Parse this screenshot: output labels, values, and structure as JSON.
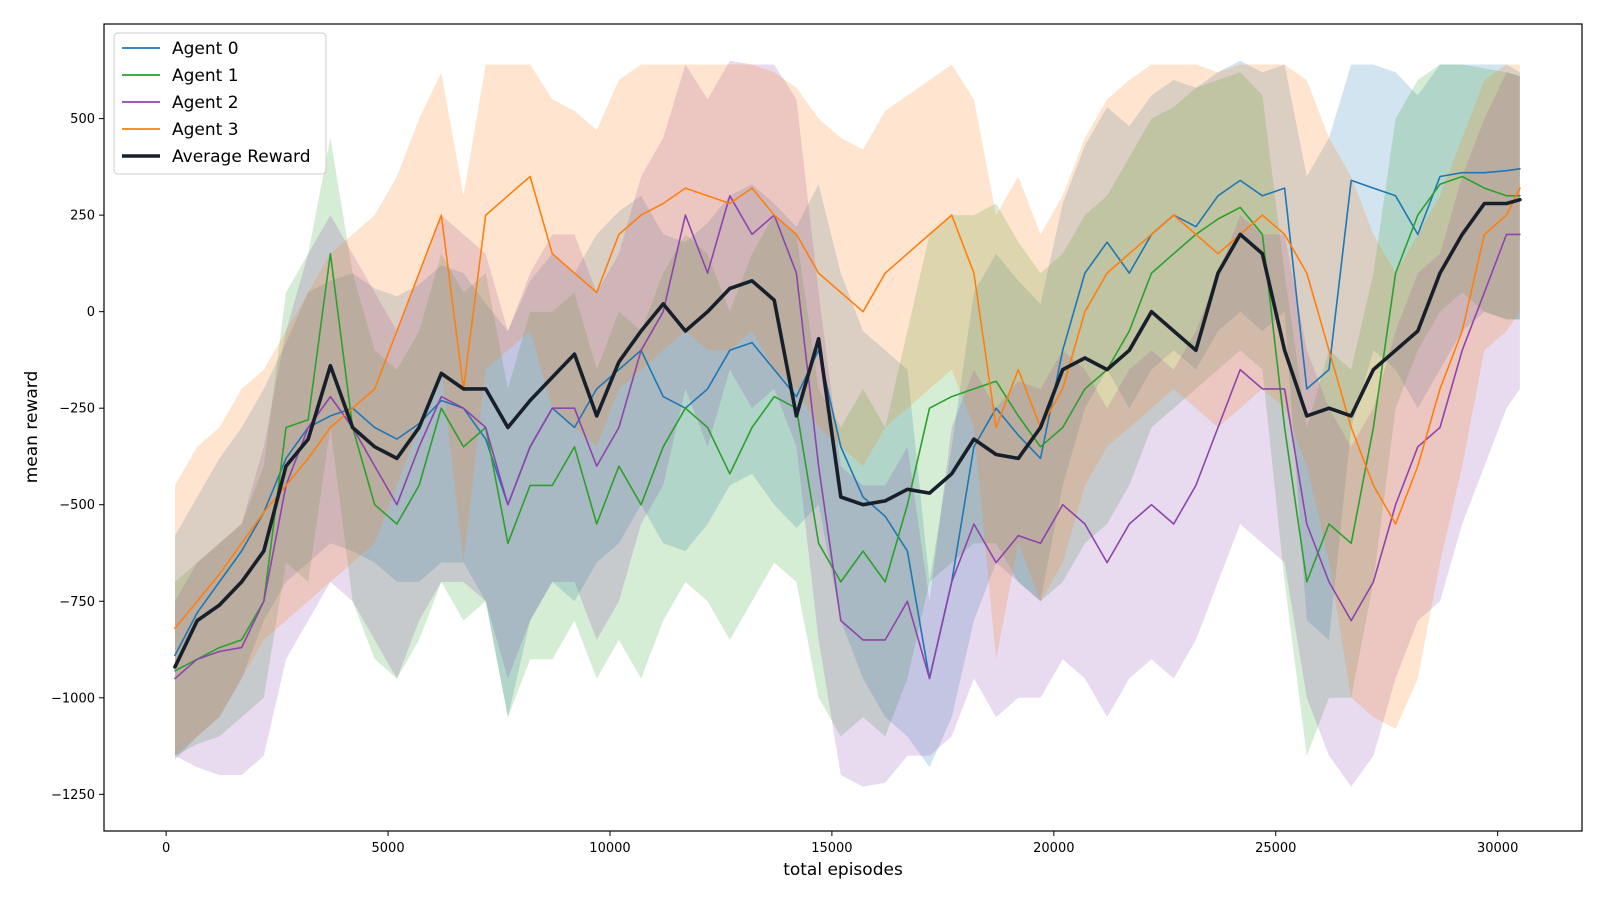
{
  "chart_data": {
    "type": "line",
    "xlabel": "total episodes",
    "ylabel": "mean reward",
    "xlim": [
      -1400,
      31900
    ],
    "ylim": [
      -1345,
      745
    ],
    "xticks": [
      0,
      5000,
      10000,
      15000,
      20000,
      25000,
      30000
    ],
    "yticks": [
      500,
      250,
      0,
      -250,
      -500,
      -750,
      -1000,
      -1250
    ],
    "legend_position": "top-left",
    "grid": false,
    "series": [
      {
        "name": "Agent 0",
        "color": "#1f77b4",
        "band_opacity": 0.2,
        "x": [
          200,
          700,
          1200,
          1700,
          2200,
          2700,
          3200,
          3700,
          4200,
          4700,
          5200,
          5700,
          6200,
          6700,
          7200,
          7700,
          8200,
          8700,
          9200,
          9700,
          10200,
          10700,
          11200,
          11700,
          12200,
          12700,
          13200,
          13700,
          14200,
          14700,
          15200,
          15700,
          16200,
          16700,
          17200,
          17700,
          18200,
          18700,
          19200,
          19700,
          20200,
          20700,
          21200,
          21700,
          22200,
          22700,
          23200,
          23700,
          24200,
          24700,
          25200,
          25700,
          26200,
          26700,
          27200,
          27700,
          28200,
          28700,
          29200,
          29700,
          30200,
          30500
        ],
        "y": [
          -890,
          -780,
          -700,
          -620,
          -520,
          -380,
          -300,
          -270,
          -250,
          -300,
          -330,
          -290,
          -230,
          -250,
          -330,
          -500,
          -350,
          -250,
          -300,
          -200,
          -150,
          -100,
          -220,
          -250,
          -200,
          -100,
          -80,
          -150,
          -220,
          -100,
          -350,
          -480,
          -530,
          -620,
          -950,
          -700,
          -350,
          -250,
          -320,
          -380,
          -100,
          100,
          180,
          100,
          200,
          250,
          220,
          300,
          340,
          300,
          320,
          -200,
          -150,
          340,
          320,
          300,
          200,
          350,
          360,
          360,
          365,
          370
        ],
        "lower": [
          -1160,
          -1100,
          -1050,
          -950,
          -800,
          -700,
          -650,
          -600,
          -620,
          -650,
          -700,
          -700,
          -650,
          -650,
          -750,
          -1050,
          -800,
          -700,
          -750,
          -650,
          -600,
          -500,
          -600,
          -620,
          -550,
          -450,
          -420,
          -500,
          -560,
          -500,
          -800,
          -950,
          -1050,
          -1100,
          -1180,
          -1050,
          -800,
          -650,
          -700,
          -750,
          -450,
          -250,
          -150,
          -250,
          -150,
          -100,
          -150,
          -50,
          0,
          -50,
          0,
          -800,
          -850,
          -300,
          -100,
          -150,
          -250,
          -150,
          -50,
          0,
          -20,
          -20
        ],
        "upper": [
          -580,
          -480,
          -380,
          -300,
          -200,
          -80,
          50,
          80,
          100,
          60,
          40,
          70,
          120,
          100,
          20,
          -50,
          80,
          150,
          100,
          200,
          260,
          300,
          200,
          180,
          230,
          300,
          330,
          280,
          220,
          330,
          100,
          -50,
          -100,
          -150,
          -700,
          -350,
          50,
          150,
          80,
          20,
          280,
          430,
          530,
          480,
          560,
          600,
          580,
          620,
          650,
          620,
          640,
          350,
          450,
          640,
          640,
          620,
          560,
          640,
          640,
          640,
          640,
          620
        ]
      },
      {
        "name": "Agent 1",
        "color": "#2ca02c",
        "band_opacity": 0.2,
        "x": [
          200,
          700,
          1200,
          1700,
          2200,
          2700,
          3200,
          3700,
          4200,
          4700,
          5200,
          5700,
          6200,
          6700,
          7200,
          7700,
          8200,
          8700,
          9200,
          9700,
          10200,
          10700,
          11200,
          11700,
          12200,
          12700,
          13200,
          13700,
          14200,
          14700,
          15200,
          15700,
          16200,
          16700,
          17200,
          17700,
          18200,
          18700,
          19200,
          19700,
          20200,
          20700,
          21200,
          21700,
          22200,
          22700,
          23200,
          23700,
          24200,
          24700,
          25200,
          25700,
          26200,
          26700,
          27200,
          27700,
          28200,
          28700,
          29200,
          29700,
          30200,
          30500
        ],
        "y": [
          -930,
          -900,
          -870,
          -850,
          -750,
          -300,
          -280,
          150,
          -300,
          -500,
          -550,
          -450,
          -250,
          -350,
          -300,
          -600,
          -450,
          -450,
          -350,
          -550,
          -400,
          -500,
          -350,
          -250,
          -300,
          -420,
          -300,
          -220,
          -250,
          -600,
          -700,
          -620,
          -700,
          -500,
          -250,
          -220,
          -200,
          -180,
          -270,
          -350,
          -300,
          -200,
          -150,
          -50,
          100,
          150,
          200,
          240,
          270,
          200,
          -300,
          -700,
          -550,
          -600,
          -300,
          100,
          250,
          330,
          350,
          320,
          300,
          300
        ],
        "lower": [
          -1150,
          -1120,
          -1100,
          -1050,
          -1000,
          -650,
          -700,
          -300,
          -750,
          -900,
          -950,
          -850,
          -700,
          -800,
          -750,
          -1050,
          -900,
          -900,
          -800,
          -950,
          -850,
          -950,
          -800,
          -700,
          -750,
          -850,
          -750,
          -650,
          -700,
          -1000,
          -1100,
          -1050,
          -1100,
          -950,
          -700,
          -650,
          -600,
          -600,
          -700,
          -750,
          -700,
          -600,
          -550,
          -450,
          -300,
          -250,
          -200,
          -150,
          -100,
          -150,
          -700,
          -1150,
          -1000,
          -1000,
          -700,
          -250,
          -100,
          0,
          50,
          0,
          -20,
          -20
        ],
        "upper": [
          -700,
          -650,
          -600,
          -550,
          -400,
          50,
          150,
          450,
          100,
          -100,
          -150,
          -50,
          150,
          50,
          100,
          -200,
          0,
          0,
          50,
          -150,
          0,
          -50,
          100,
          200,
          150,
          0,
          150,
          250,
          200,
          -200,
          -300,
          -200,
          -300,
          -50,
          200,
          250,
          250,
          280,
          180,
          100,
          150,
          250,
          300,
          400,
          500,
          530,
          580,
          600,
          620,
          560,
          100,
          -300,
          -100,
          -150,
          100,
          500,
          600,
          640,
          640,
          630,
          620,
          610
        ]
      },
      {
        "name": "Agent 2",
        "color": "#8e44ad",
        "band_opacity": 0.2,
        "x": [
          200,
          700,
          1200,
          1700,
          2200,
          2700,
          3200,
          3700,
          4200,
          4700,
          5200,
          5700,
          6200,
          6700,
          7200,
          7700,
          8200,
          8700,
          9200,
          9700,
          10200,
          10700,
          11200,
          11700,
          12200,
          12700,
          13200,
          13700,
          14200,
          14700,
          15200,
          15700,
          16200,
          16700,
          17200,
          17700,
          18200,
          18700,
          19200,
          19700,
          20200,
          20700,
          21200,
          21700,
          22200,
          22700,
          23200,
          23700,
          24200,
          24700,
          25200,
          25700,
          26200,
          26700,
          27200,
          27700,
          28200,
          28700,
          29200,
          29700,
          30200,
          30500
        ],
        "y": [
          -950,
          -900,
          -880,
          -870,
          -750,
          -450,
          -300,
          -220,
          -300,
          -400,
          -500,
          -350,
          -220,
          -250,
          -300,
          -500,
          -350,
          -250,
          -250,
          -400,
          -300,
          -100,
          0,
          250,
          100,
          300,
          200,
          250,
          100,
          -400,
          -800,
          -850,
          -850,
          -750,
          -950,
          -700,
          -550,
          -650,
          -580,
          -600,
          -500,
          -550,
          -650,
          -550,
          -500,
          -550,
          -450,
          -300,
          -150,
          -200,
          -200,
          -550,
          -700,
          -800,
          -700,
          -500,
          -350,
          -300,
          -100,
          50,
          200,
          200
        ],
        "lower": [
          -1150,
          -1180,
          -1200,
          -1200,
          -1150,
          -900,
          -800,
          -700,
          -750,
          -850,
          -950,
          -800,
          -700,
          -700,
          -750,
          -950,
          -800,
          -700,
          -700,
          -850,
          -750,
          -550,
          -450,
          -200,
          -350,
          -150,
          -250,
          -200,
          -350,
          -850,
          -1200,
          -1230,
          -1220,
          -1150,
          -1150,
          -1100,
          -950,
          -1050,
          -1000,
          -1000,
          -900,
          -950,
          -1050,
          -950,
          -900,
          -950,
          -850,
          -700,
          -550,
          -600,
          -650,
          -1000,
          -1150,
          -1230,
          -1150,
          -950,
          -800,
          -750,
          -550,
          -400,
          -250,
          -200
        ],
        "upper": [
          -750,
          -650,
          -600,
          -550,
          -350,
          -50,
          150,
          250,
          150,
          50,
          -50,
          100,
          250,
          200,
          150,
          -50,
          100,
          200,
          200,
          50,
          150,
          350,
          450,
          640,
          550,
          650,
          640,
          640,
          550,
          50,
          -400,
          -450,
          -450,
          -350,
          -750,
          -300,
          -150,
          -250,
          -180,
          -200,
          -100,
          -150,
          -250,
          -150,
          -100,
          -150,
          -50,
          100,
          250,
          200,
          200,
          -100,
          -250,
          -350,
          -250,
          -50,
          100,
          150,
          350,
          500,
          620,
          610
        ]
      },
      {
        "name": "Agent 3",
        "color": "#ff7f0e",
        "band_opacity": 0.2,
        "x": [
          200,
          700,
          1200,
          1700,
          2200,
          2700,
          3200,
          3700,
          4200,
          4700,
          5200,
          5700,
          6200,
          6700,
          7200,
          7700,
          8200,
          8700,
          9200,
          9700,
          10200,
          10700,
          11200,
          11700,
          12200,
          12700,
          13200,
          13700,
          14200,
          14700,
          15200,
          15700,
          16200,
          16700,
          17200,
          17700,
          18200,
          18700,
          19200,
          19700,
          20200,
          20700,
          21200,
          21700,
          22200,
          22700,
          23200,
          23700,
          24200,
          24700,
          25200,
          25700,
          26200,
          26700,
          27200,
          27700,
          28200,
          28700,
          29200,
          29700,
          30200,
          30500
        ],
        "y": [
          -820,
          -750,
          -680,
          -600,
          -520,
          -450,
          -380,
          -300,
          -250,
          -200,
          -50,
          100,
          250,
          -200,
          250,
          300,
          350,
          150,
          100,
          50,
          200,
          250,
          280,
          320,
          300,
          280,
          320,
          250,
          200,
          100,
          50,
          0,
          100,
          150,
          200,
          250,
          100,
          -300,
          -150,
          -300,
          -200,
          0,
          100,
          150,
          200,
          250,
          200,
          150,
          200,
          250,
          200,
          100,
          -100,
          -300,
          -450,
          -550,
          -400,
          -200,
          -50,
          200,
          250,
          320
        ],
        "lower": [
          -1150,
          -1100,
          -1050,
          -950,
          -850,
          -800,
          -750,
          -700,
          -650,
          -600,
          -450,
          -300,
          -150,
          -650,
          -150,
          -100,
          -50,
          -250,
          -300,
          -350,
          -200,
          -150,
          -100,
          -50,
          -100,
          -100,
          -50,
          -150,
          -200,
          -300,
          -350,
          -400,
          -300,
          -250,
          -200,
          -150,
          -300,
          -900,
          -600,
          -750,
          -650,
          -450,
          -350,
          -300,
          -250,
          -200,
          -250,
          -300,
          -250,
          -200,
          -250,
          -400,
          -650,
          -1000,
          -1050,
          -1080,
          -950,
          -650,
          -400,
          -100,
          -50,
          0
        ],
        "upper": [
          -450,
          -350,
          -300,
          -200,
          -150,
          -50,
          50,
          150,
          200,
          250,
          350,
          500,
          620,
          300,
          640,
          640,
          640,
          550,
          520,
          470,
          600,
          640,
          640,
          640,
          640,
          640,
          640,
          620,
          580,
          500,
          450,
          420,
          520,
          560,
          600,
          640,
          550,
          250,
          350,
          200,
          300,
          450,
          550,
          600,
          640,
          640,
          640,
          620,
          640,
          640,
          640,
          600,
          450,
          350,
          200,
          100,
          200,
          300,
          450,
          600,
          640,
          640
        ]
      },
      {
        "name": "Average Reward",
        "color": "#17202a",
        "x": [
          200,
          700,
          1200,
          1700,
          2200,
          2700,
          3200,
          3700,
          4200,
          4700,
          5200,
          5700,
          6200,
          6700,
          7200,
          7700,
          8200,
          8700,
          9200,
          9700,
          10200,
          10700,
          11200,
          11700,
          12200,
          12700,
          13200,
          13700,
          14200,
          14700,
          15200,
          15700,
          16200,
          16700,
          17200,
          17700,
          18200,
          18700,
          19200,
          19700,
          20200,
          20700,
          21200,
          21700,
          22200,
          22700,
          23200,
          23700,
          24200,
          24700,
          25200,
          25700,
          26200,
          26700,
          27200,
          27700,
          28200,
          28700,
          29200,
          29700,
          30200,
          30500
        ],
        "y": [
          -920,
          -800,
          -760,
          -700,
          -620,
          -400,
          -330,
          -140,
          -300,
          -350,
          -380,
          -300,
          -160,
          -200,
          -200,
          -300,
          -230,
          -170,
          -110,
          -270,
          -130,
          -50,
          20,
          -50,
          0,
          60,
          80,
          30,
          -270,
          -70,
          -480,
          -500,
          -490,
          -460,
          -470,
          -420,
          -330,
          -370,
          -380,
          -300,
          -150,
          -120,
          -150,
          -100,
          0,
          -50,
          -100,
          100,
          200,
          150,
          -100,
          -270,
          -250,
          -270,
          -150,
          -100,
          -50,
          100,
          200,
          280,
          280,
          290
        ]
      }
    ]
  }
}
